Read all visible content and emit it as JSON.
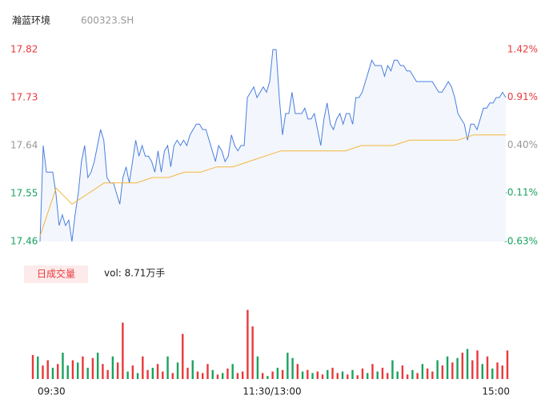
{
  "header": {
    "name": "瀚蓝环境",
    "code": "600323.SH"
  },
  "chart_data": [
    {
      "type": "line",
      "ylim": [
        17.46,
        17.82
      ],
      "yticks": [
        17.46,
        17.55,
        17.64,
        17.73,
        17.82
      ],
      "ytick_colors": [
        "#1aa260",
        "#1aa260",
        "#999999",
        "#e8393b",
        "#e8393b"
      ],
      "y2lim": [
        -0.63,
        1.42
      ],
      "y2ticks": [
        {
          "value": -0.63,
          "label": "-0.63%"
        },
        {
          "value": -0.11,
          "label": "-0.11%"
        },
        {
          "value": 0.4,
          "label": "0.40%"
        },
        {
          "value": 0.91,
          "label": "0.91%"
        },
        {
          "value": 1.42,
          "label": "1.42%"
        }
      ],
      "series": [
        {
          "color": "#4a7fe0",
          "values": [
            17.46,
            17.64,
            17.59,
            17.59,
            17.59,
            17.55,
            17.49,
            17.51,
            17.49,
            17.5,
            17.46,
            17.51,
            17.55,
            17.61,
            17.64,
            17.58,
            17.59,
            17.61,
            17.64,
            17.67,
            17.65,
            17.58,
            17.57,
            17.57,
            17.55,
            17.53,
            17.58,
            17.6,
            17.57,
            17.61,
            17.65,
            17.62,
            17.64,
            17.62,
            17.62,
            17.61,
            17.59,
            17.63,
            17.59,
            17.63,
            17.64,
            17.6,
            17.64,
            17.65,
            17.64,
            17.65,
            17.64,
            17.66,
            17.67,
            17.68,
            17.68,
            17.67,
            17.67,
            17.65,
            17.63,
            17.61,
            17.64,
            17.63,
            17.61,
            17.62,
            17.66,
            17.64,
            17.63,
            17.64,
            17.64,
            17.73,
            17.74,
            17.75,
            17.73,
            17.74,
            17.75,
            17.74,
            17.76,
            17.82,
            17.82,
            17.73,
            17.66,
            17.7,
            17.7,
            17.74,
            17.7,
            17.7,
            17.7,
            17.71,
            17.69,
            17.69,
            17.7,
            17.67,
            17.64,
            17.69,
            17.72,
            17.68,
            17.67,
            17.69,
            17.7,
            17.68,
            17.7,
            17.7,
            17.68,
            17.73,
            17.73,
            17.74,
            17.76,
            17.78,
            17.8,
            17.79,
            17.79,
            17.79,
            17.77,
            17.79,
            17.78,
            17.8,
            17.8,
            17.79,
            17.79,
            17.78,
            17.78,
            17.77,
            17.76,
            17.76,
            17.76,
            17.76,
            17.76,
            17.76,
            17.75,
            17.74,
            17.74,
            17.75,
            17.76,
            17.75,
            17.73,
            17.7,
            17.69,
            17.68,
            17.65,
            17.68,
            17.68,
            17.67,
            17.69,
            17.71,
            17.71,
            17.72,
            17.72,
            17.73,
            17.73,
            17.74,
            17.73
          ]
        },
        {
          "color": "#f5b53a",
          "values": [
            17.47,
            17.56,
            17.53,
            17.55,
            17.57,
            17.57,
            17.57,
            17.58,
            17.58,
            17.59,
            17.59,
            17.6,
            17.6,
            17.61,
            17.62,
            17.63,
            17.63,
            17.63,
            17.63,
            17.63,
            17.64,
            17.64,
            17.64,
            17.65,
            17.65,
            17.65,
            17.65,
            17.66,
            17.66,
            17.66
          ]
        }
      ]
    },
    {
      "type": "bar",
      "legend": "日成交量",
      "vol_label": "vol: 8.71万手",
      "x_labels": [
        "09:30",
        "11:30/13:00",
        "15:00"
      ],
      "ylim": [
        0,
        100
      ],
      "colors": [
        "#e8393b",
        "#1aa260"
      ],
      "values": [
        32,
        30,
        18,
        25,
        15,
        20,
        35,
        18,
        25,
        22,
        30,
        15,
        28,
        35,
        20,
        12,
        30,
        22,
        75,
        10,
        18,
        8,
        30,
        12,
        15,
        20,
        10,
        30,
        8,
        22,
        60,
        15,
        25,
        10,
        8,
        20,
        12,
        6,
        8,
        14,
        20,
        8,
        10,
        92,
        70,
        30,
        8,
        4,
        10,
        15,
        12,
        35,
        28,
        20,
        10,
        12,
        8,
        10,
        6,
        12,
        15,
        8,
        10,
        6,
        12,
        5,
        14,
        8,
        20,
        10,
        15,
        8,
        25,
        10,
        18,
        6,
        12,
        8,
        20,
        14,
        10,
        25,
        18,
        30,
        22,
        28,
        35,
        40,
        25,
        38,
        20,
        30,
        14,
        22,
        18,
        38
      ],
      "direction": [
        0,
        1,
        0,
        0,
        1,
        0,
        1,
        1,
        0,
        1,
        0,
        1,
        0,
        1,
        0,
        0,
        1,
        0,
        0,
        1,
        0,
        1,
        0,
        0,
        1,
        0,
        0,
        1,
        0,
        1,
        0,
        0,
        1,
        0,
        0,
        0,
        1,
        0,
        1,
        0,
        1,
        0,
        0,
        0,
        0,
        1,
        0,
        1,
        0,
        1,
        0,
        1,
        1,
        0,
        1,
        0,
        1,
        0,
        0,
        1,
        0,
        0,
        1,
        0,
        1,
        0,
        0,
        1,
        0,
        1,
        0,
        0,
        1,
        1,
        0,
        0,
        1,
        0,
        1,
        0,
        0,
        1,
        0,
        1,
        0,
        1,
        0,
        1,
        0,
        0,
        1,
        0,
        1,
        0,
        0,
        0
      ]
    }
  ]
}
